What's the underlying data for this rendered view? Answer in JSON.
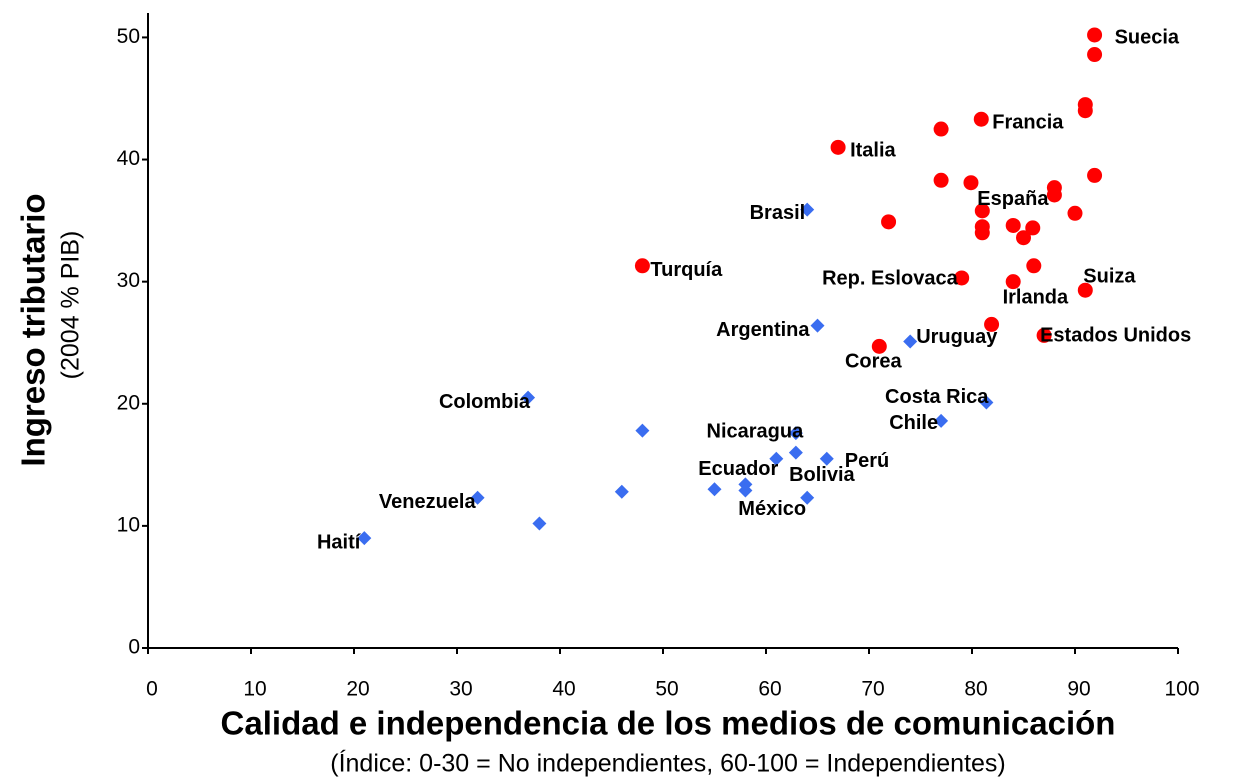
{
  "chart_data": {
    "type": "scatter",
    "xlabel": "Calidad e independencia de los medios de comunicación",
    "xsublabel": "(Índice: 0-30 = No independientes, 60-100 = Independientes)",
    "ylabel": "Ingreso tributario",
    "ysublabel": "(2004 % PIB)",
    "xlim": [
      0,
      100
    ],
    "xticks": [
      0,
      10,
      20,
      30,
      40,
      50,
      60,
      70,
      80,
      90,
      100
    ],
    "ylim": [
      0,
      52
    ],
    "yticks": [
      0,
      10,
      20,
      30,
      40,
      50
    ],
    "grid": false,
    "series": [
      {
        "color": "#ff0000",
        "marker": "circle",
        "x": [
          91.9,
          91.9,
          91,
          91,
          80.9,
          77,
          67,
          77,
          79.9,
          88,
          88,
          91.9,
          81,
          71.9,
          84,
          81,
          81,
          85.9,
          85,
          90,
          48,
          79,
          84,
          86,
          91,
          81.9,
          87,
          71
        ],
        "values": [
          50.2,
          48.6,
          44.5,
          44.0,
          43.3,
          42.5,
          41.0,
          38.3,
          38.1,
          37.7,
          37.1,
          38.7,
          35.8,
          34.9,
          34.6,
          34.5,
          34.0,
          34.4,
          33.6,
          35.6,
          31.3,
          30.3,
          30.0,
          31.3,
          29.3,
          26.5,
          25.6,
          24.7
        ],
        "labels": [
          "Suecia",
          null,
          null,
          null,
          "Francia",
          null,
          "Italia",
          null,
          null,
          null,
          null,
          null,
          "España",
          null,
          null,
          null,
          null,
          null,
          null,
          null,
          "Turquía",
          "Rep. Eslovaca",
          null,
          null,
          "Suiza",
          "Irlanda",
          "Estados Unidos",
          "Corea"
        ]
      },
      {
        "color": "#3a6df0",
        "marker": "diamond",
        "x": [
          64,
          65,
          74,
          36.9,
          81.4,
          77,
          48,
          62.9,
          62.9,
          61,
          65.9,
          58,
          58,
          55,
          64,
          46,
          38,
          32,
          21
        ],
        "values": [
          35.9,
          26.4,
          25.1,
          20.5,
          20.1,
          18.6,
          17.8,
          17.6,
          16.0,
          15.5,
          15.5,
          13.4,
          12.9,
          13.0,
          12.3,
          12.8,
          10.2,
          12.3,
          9.0
        ],
        "labels": [
          "Brasil",
          "Argentina",
          "Uruguay",
          "Colombia",
          "Costa Rica",
          "Chile",
          null,
          "Nicaragua",
          "Bolivia",
          "Ecuador",
          "Perú",
          null,
          null,
          null,
          "México",
          null,
          null,
          "Venezuela",
          "Haití"
        ]
      }
    ]
  }
}
